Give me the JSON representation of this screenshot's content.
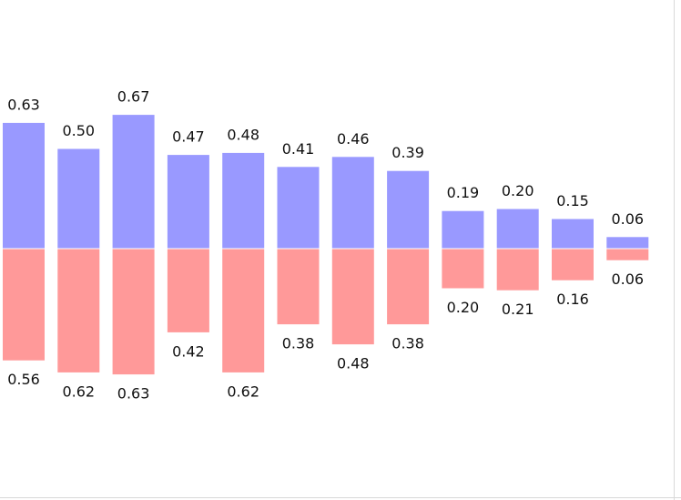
{
  "chart_data": {
    "type": "bar",
    "series": [
      {
        "values": [
          0.63,
          0.5,
          0.67,
          0.47,
          0.48,
          0.41,
          0.46,
          0.39,
          0.19,
          0.2,
          0.15,
          0.06
        ],
        "labels": [
          "0.63",
          "0.50",
          "0.67",
          "0.47",
          "0.48",
          "0.41",
          "0.46",
          "0.39",
          "0.19",
          "0.20",
          "0.15",
          "0.06"
        ],
        "color": "#9999ff",
        "direction": "up"
      },
      {
        "values": [
          0.56,
          0.62,
          0.63,
          0.42,
          0.62,
          0.38,
          0.48,
          0.38,
          0.2,
          0.21,
          0.16,
          0.06
        ],
        "labels": [
          "0.56",
          "0.62",
          "0.63",
          "0.42",
          "0.62",
          "0.38",
          "0.48",
          "0.38",
          "0.20",
          "0.21",
          "0.16",
          "0.06"
        ],
        "color": "#ff9999",
        "direction": "down"
      }
    ],
    "ylim": [
      -1.25,
      1.25
    ],
    "grid": false,
    "axes_visible": false
  }
}
